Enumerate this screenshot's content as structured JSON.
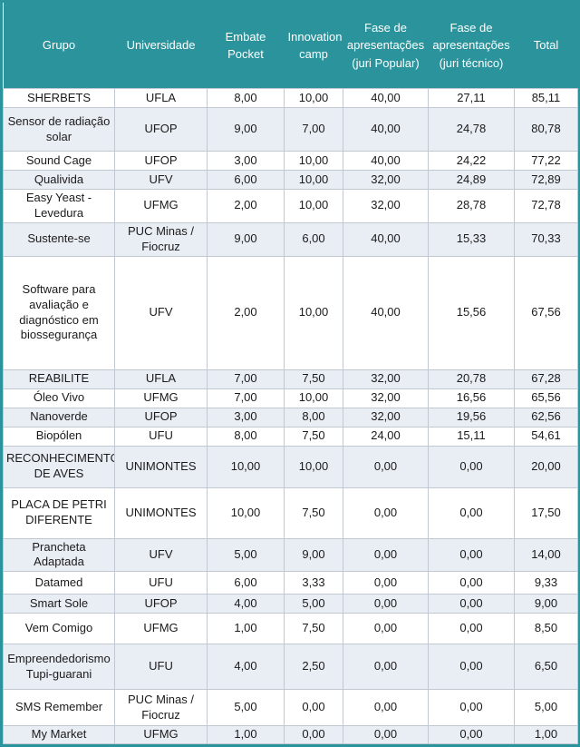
{
  "colors": {
    "header_bg": "#2A939C",
    "header_text": "#FFFFFF",
    "alt_row_bg": "#E9EDF4",
    "grid_border": "#C2C8D2",
    "cell_text": "#1B1B1B",
    "frame": "#2A939C"
  },
  "table": {
    "columns": [
      {
        "key": "grupo",
        "label": "Grupo"
      },
      {
        "key": "universidade",
        "label": "Universidade"
      },
      {
        "key": "embate",
        "label": "Embate Pocket"
      },
      {
        "key": "innovation",
        "label": "Innovation camp"
      },
      {
        "key": "popular",
        "label": "Fase de apresentações (juri Popular)"
      },
      {
        "key": "tecnico",
        "label": "Fase de apresentações (juri técnico)"
      },
      {
        "key": "total",
        "label": "Total"
      }
    ],
    "rows": [
      {
        "grupo": "SHERBETS",
        "universidade": "UFLA",
        "embate": "8,00",
        "innovation": "10,00",
        "popular": "40,00",
        "tecnico": "27,11",
        "total": "85,11"
      },
      {
        "grupo": "Sensor de radiação solar",
        "universidade": "UFOP",
        "embate": "9,00",
        "innovation": "7,00",
        "popular": "40,00",
        "tecnico": "24,78",
        "total": "80,78"
      },
      {
        "grupo": "Sound Cage",
        "universidade": "UFOP",
        "embate": "3,00",
        "innovation": "10,00",
        "popular": "40,00",
        "tecnico": "24,22",
        "total": "77,22"
      },
      {
        "grupo": "Qualivida",
        "universidade": "UFV",
        "embate": "6,00",
        "innovation": "10,00",
        "popular": "32,00",
        "tecnico": "24,89",
        "total": "72,89"
      },
      {
        "grupo": "Easy Yeast - Levedura",
        "universidade": "UFMG",
        "embate": "2,00",
        "innovation": "10,00",
        "popular": "32,00",
        "tecnico": "28,78",
        "total": "72,78"
      },
      {
        "grupo": "Sustente-se",
        "universidade": "PUC Minas / Fiocruz",
        "embate": "9,00",
        "innovation": "6,00",
        "popular": "40,00",
        "tecnico": "15,33",
        "total": "70,33"
      },
      {
        "grupo": "Software para avaliação e diagnóstico em biossegurança",
        "universidade": "UFV",
        "embate": "2,00",
        "innovation": "10,00",
        "popular": "40,00",
        "tecnico": "15,56",
        "total": "67,56"
      },
      {
        "grupo": "REABILITE",
        "universidade": "UFLA",
        "embate": "7,00",
        "innovation": "7,50",
        "popular": "32,00",
        "tecnico": "20,78",
        "total": "67,28"
      },
      {
        "grupo": "Óleo Vivo",
        "universidade": "UFMG",
        "embate": "7,00",
        "innovation": "10,00",
        "popular": "32,00",
        "tecnico": "16,56",
        "total": "65,56"
      },
      {
        "grupo": "Nanoverde",
        "universidade": "UFOP",
        "embate": "3,00",
        "innovation": "8,00",
        "popular": "32,00",
        "tecnico": "19,56",
        "total": "62,56"
      },
      {
        "grupo": "Biopólen",
        "universidade": "UFU",
        "embate": "8,00",
        "innovation": "7,50",
        "popular": "24,00",
        "tecnico": "15,11",
        "total": "54,61"
      },
      {
        "grupo": "RECONHECIMENTO DE AVES",
        "universidade": "UNIMONTES",
        "embate": "10,00",
        "innovation": "10,00",
        "popular": "0,00",
        "tecnico": "0,00",
        "total": "20,00"
      },
      {
        "grupo": "PLACA DE PETRI DIFERENTE",
        "universidade": "UNIMONTES",
        "embate": "10,00",
        "innovation": "7,50",
        "popular": "0,00",
        "tecnico": "0,00",
        "total": "17,50"
      },
      {
        "grupo": "Prancheta Adaptada",
        "universidade": "UFV",
        "embate": "5,00",
        "innovation": "9,00",
        "popular": "0,00",
        "tecnico": "0,00",
        "total": "14,00"
      },
      {
        "grupo": "Datamed",
        "universidade": "UFU",
        "embate": "6,00",
        "innovation": "3,33",
        "popular": "0,00",
        "tecnico": "0,00",
        "total": "9,33"
      },
      {
        "grupo": "Smart Sole",
        "universidade": "UFOP",
        "embate": "4,00",
        "innovation": "5,00",
        "popular": "0,00",
        "tecnico": "0,00",
        "total": "9,00"
      },
      {
        "grupo": "Vem Comigo",
        "universidade": "UFMG",
        "embate": "1,00",
        "innovation": "7,50",
        "popular": "0,00",
        "tecnico": "0,00",
        "total": "8,50"
      },
      {
        "grupo": "Empreendedorismo Tupi-guarani",
        "universidade": "UFU",
        "embate": "4,00",
        "innovation": "2,50",
        "popular": "0,00",
        "tecnico": "0,00",
        "total": "6,50"
      },
      {
        "grupo": "SMS Remember",
        "universidade": "PUC Minas / Fiocruz",
        "embate": "5,00",
        "innovation": "0,00",
        "popular": "0,00",
        "tecnico": "0,00",
        "total": "5,00"
      },
      {
        "grupo": "My Market",
        "universidade": "UFMG",
        "embate": "1,00",
        "innovation": "0,00",
        "popular": "0,00",
        "tecnico": "0,00",
        "total": "1,00"
      }
    ]
  }
}
